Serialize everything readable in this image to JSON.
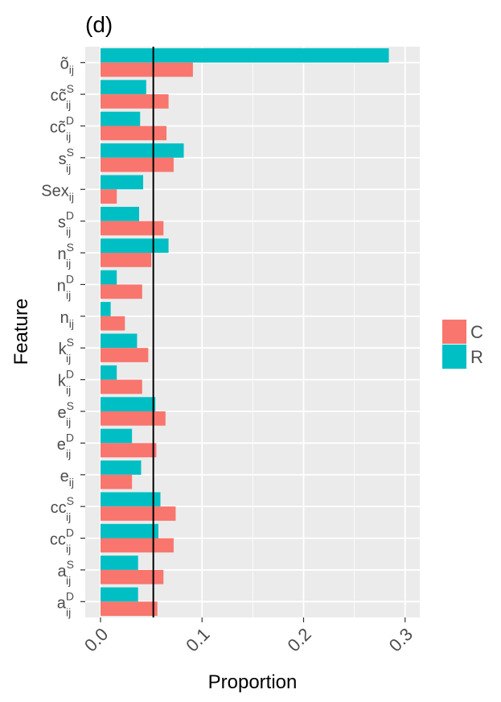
{
  "chart_data": {
    "type": "bar",
    "orientation": "horizontal",
    "title": "(d)",
    "xlabel": "Proportion",
    "ylabel": "Feature",
    "xlim": [
      0,
      0.31
    ],
    "x_ticks": [
      0.0,
      0.1,
      0.2,
      0.3
    ],
    "x_tick_labels": [
      "0.0",
      "0.1",
      "0.2",
      "0.3"
    ],
    "reference_line_x": 0.052,
    "grid": true,
    "categories": [
      {
        "base": "õ",
        "sup": "",
        "sub": "ij"
      },
      {
        "base": "cc̃",
        "sup": "S",
        "sub": "ij"
      },
      {
        "base": "cc̃",
        "sup": "D",
        "sub": "ij"
      },
      {
        "base": "s",
        "sup": "S",
        "sub": "ij"
      },
      {
        "base": "Sex",
        "sup": "",
        "sub": "ij"
      },
      {
        "base": "s",
        "sup": "D",
        "sub": "ij"
      },
      {
        "base": "n",
        "sup": "S",
        "sub": "ij"
      },
      {
        "base": "n",
        "sup": "D",
        "sub": "ij"
      },
      {
        "base": "n",
        "sup": "",
        "sub": "ij"
      },
      {
        "base": "k",
        "sup": "S",
        "sub": "ij"
      },
      {
        "base": "k",
        "sup": "D",
        "sub": "ij"
      },
      {
        "base": "e",
        "sup": "S",
        "sub": "ij"
      },
      {
        "base": "e",
        "sup": "D",
        "sub": "ij"
      },
      {
        "base": "e",
        "sup": "",
        "sub": "ij"
      },
      {
        "base": "cc",
        "sup": "S",
        "sub": "ij"
      },
      {
        "base": "cc",
        "sup": "D",
        "sub": "ij"
      },
      {
        "base": "a",
        "sup": "S",
        "sub": "ij"
      },
      {
        "base": "a",
        "sup": "D",
        "sub": "ij"
      }
    ],
    "series": [
      {
        "name": "R",
        "color": "#00BFC4",
        "values": [
          0.284,
          0.045,
          0.039,
          0.082,
          0.042,
          0.038,
          0.067,
          0.016,
          0.01,
          0.036,
          0.016,
          0.054,
          0.031,
          0.04,
          0.059,
          0.057,
          0.037,
          0.037
        ]
      },
      {
        "name": "C",
        "color": "#F8766D",
        "values": [
          0.091,
          0.067,
          0.065,
          0.072,
          0.016,
          0.062,
          0.05,
          0.041,
          0.024,
          0.047,
          0.041,
          0.064,
          0.055,
          0.031,
          0.074,
          0.072,
          0.062,
          0.056
        ]
      }
    ],
    "legend": {
      "position": "right",
      "entries": [
        {
          "label": "C",
          "color": "#F8766D"
        },
        {
          "label": "R",
          "color": "#00BFC4"
        }
      ]
    },
    "panel_background": "#EBEBEB",
    "grid_color": "#FFFFFF",
    "reference_line_color": "#000000"
  }
}
